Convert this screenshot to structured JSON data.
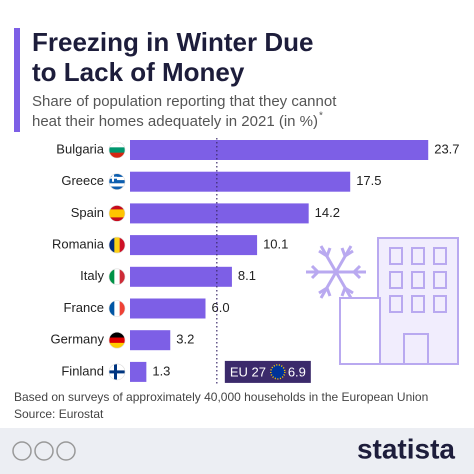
{
  "chart_data": {
    "type": "hbar",
    "title": [
      "Freezing in Winter Due",
      "to Lack of Money"
    ],
    "subtitle": [
      "Share of population reporting that they cannot",
      "heat their homes adequately in 2021 (in %)"
    ],
    "subtitle_note": "*",
    "categories": [
      "Bulgaria",
      "Greece",
      "Spain",
      "Romania",
      "Italy",
      "France",
      "Germany",
      "Finland"
    ],
    "values": [
      23.7,
      17.5,
      14.2,
      10.1,
      8.1,
      6.0,
      3.2,
      1.3
    ],
    "value_labels": [
      "23.7",
      "17.5",
      "14.2",
      "10.1",
      "8.1",
      "6.0",
      "3.2",
      "1.3"
    ],
    "color": "#7d5fe6",
    "xlim": [
      0,
      24
    ],
    "reference": {
      "label": "EU 27",
      "value": 6.9
    },
    "footnote": [
      "Based on surveys of approximately 40,000 households in the European Union",
      "Source: Eurostat"
    ],
    "brand": "statista"
  }
}
